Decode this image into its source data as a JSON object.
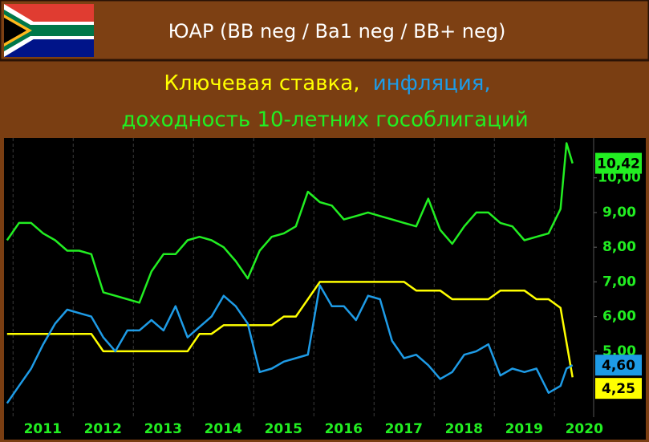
{
  "chart_data": {
    "type": "line",
    "title": "ЮАР (BB neg / Ba1 neg / BB+ neg)",
    "subtitle": [
      "Ключевая ставка,",
      "инфляция,",
      "доходность 10-летних гособлигаций"
    ],
    "x": [
      2010.9,
      2011.1,
      2011.3,
      2011.5,
      2011.7,
      2011.9,
      2012.1,
      2012.3,
      2012.5,
      2012.7,
      2012.9,
      2013.1,
      2013.3,
      2013.5,
      2013.7,
      2013.9,
      2014.1,
      2014.3,
      2014.5,
      2014.7,
      2014.9,
      2015.1,
      2015.3,
      2015.5,
      2015.7,
      2015.9,
      2016.1,
      2016.3,
      2016.5,
      2016.7,
      2016.9,
      2017.1,
      2017.3,
      2017.5,
      2017.7,
      2017.9,
      2018.1,
      2018.3,
      2018.5,
      2018.7,
      2018.9,
      2019.1,
      2019.3,
      2019.5,
      2019.7,
      2019.9,
      2020.1,
      2020.2,
      2020.3
    ],
    "series": [
      {
        "color": "#ffff00",
        "values": [
          5.5,
          5.5,
          5.5,
          5.5,
          5.5,
          5.5,
          5.5,
          5.5,
          5.0,
          5.0,
          5.0,
          5.0,
          5.0,
          5.0,
          5.0,
          5.0,
          5.5,
          5.5,
          5.75,
          5.75,
          5.75,
          5.75,
          5.75,
          6.0,
          6.0,
          6.5,
          7.0,
          7.0,
          7.0,
          7.0,
          7.0,
          7.0,
          7.0,
          7.0,
          6.75,
          6.75,
          6.75,
          6.5,
          6.5,
          6.5,
          6.5,
          6.75,
          6.75,
          6.75,
          6.5,
          6.5,
          6.25,
          5.25,
          4.25
        ],
        "value_labels": [
          null,
          null,
          null,
          null,
          null,
          null,
          null,
          null,
          null,
          null,
          null,
          null,
          null,
          null,
          null,
          null,
          null,
          null,
          null,
          null,
          null,
          null,
          null,
          null,
          null,
          null,
          null,
          null,
          null,
          null,
          null,
          null,
          null,
          null,
          null,
          null,
          null,
          null,
          null,
          null,
          null,
          null,
          null,
          null,
          null,
          null,
          null,
          null,
          "4,25"
        ]
      },
      {
        "color": "#1e9be6",
        "values": [
          3.5,
          4.0,
          4.5,
          5.2,
          5.8,
          6.2,
          6.1,
          6.0,
          5.4,
          5.0,
          5.6,
          5.6,
          5.9,
          5.6,
          6.3,
          5.4,
          5.7,
          6.0,
          6.6,
          6.3,
          5.8,
          4.4,
          4.5,
          4.7,
          4.8,
          4.9,
          6.9,
          6.3,
          6.3,
          5.9,
          6.6,
          6.5,
          5.3,
          4.8,
          4.9,
          4.6,
          4.2,
          4.4,
          4.9,
          5.0,
          5.2,
          4.3,
          4.5,
          4.4,
          4.5,
          3.8,
          4.0,
          4.5,
          4.6
        ],
        "value_labels": [
          null,
          null,
          null,
          null,
          null,
          null,
          null,
          null,
          null,
          null,
          null,
          null,
          null,
          null,
          null,
          null,
          null,
          null,
          null,
          null,
          null,
          null,
          null,
          null,
          null,
          null,
          null,
          null,
          null,
          null,
          null,
          null,
          null,
          null,
          null,
          null,
          null,
          null,
          null,
          null,
          null,
          null,
          null,
          null,
          null,
          null,
          null,
          null,
          "4,60"
        ]
      },
      {
        "color": "#22ee22",
        "values": [
          8.2,
          8.7,
          8.7,
          8.4,
          8.2,
          7.9,
          7.9,
          7.8,
          6.7,
          6.6,
          6.5,
          6.4,
          7.3,
          7.8,
          7.8,
          8.2,
          8.3,
          8.2,
          8.0,
          7.6,
          7.1,
          7.9,
          8.3,
          8.4,
          8.6,
          9.6,
          9.3,
          9.2,
          8.8,
          8.9,
          9.0,
          8.9,
          8.8,
          8.7,
          8.6,
          9.4,
          8.5,
          8.1,
          8.6,
          9.0,
          9.0,
          8.7,
          8.6,
          8.2,
          8.3,
          8.4,
          9.1,
          11.0,
          10.42
        ],
        "value_labels": [
          null,
          null,
          null,
          null,
          null,
          null,
          null,
          null,
          null,
          null,
          null,
          null,
          null,
          null,
          null,
          null,
          null,
          null,
          null,
          null,
          null,
          null,
          null,
          null,
          null,
          null,
          null,
          null,
          null,
          null,
          null,
          null,
          null,
          null,
          null,
          null,
          null,
          null,
          null,
          null,
          null,
          null,
          null,
          null,
          null,
          null,
          null,
          null,
          "10,42"
        ]
      }
    ],
    "xlim": [
      2010.85,
      2020.65
    ],
    "xticks": [
      2011,
      2012,
      2013,
      2014,
      2015,
      2016,
      2017,
      2018,
      2019,
      2020
    ],
    "ylim": [
      3.1,
      11.15
    ],
    "yticks": [
      {
        "value": 5,
        "label": "5,00"
      },
      {
        "value": 6,
        "label": "6,00"
      },
      {
        "value": 7,
        "label": "7,00"
      },
      {
        "value": 8,
        "label": "8,00"
      },
      {
        "value": 9,
        "label": "9,00"
      },
      {
        "value": 10,
        "label": "10,00"
      }
    ],
    "grid": true
  }
}
